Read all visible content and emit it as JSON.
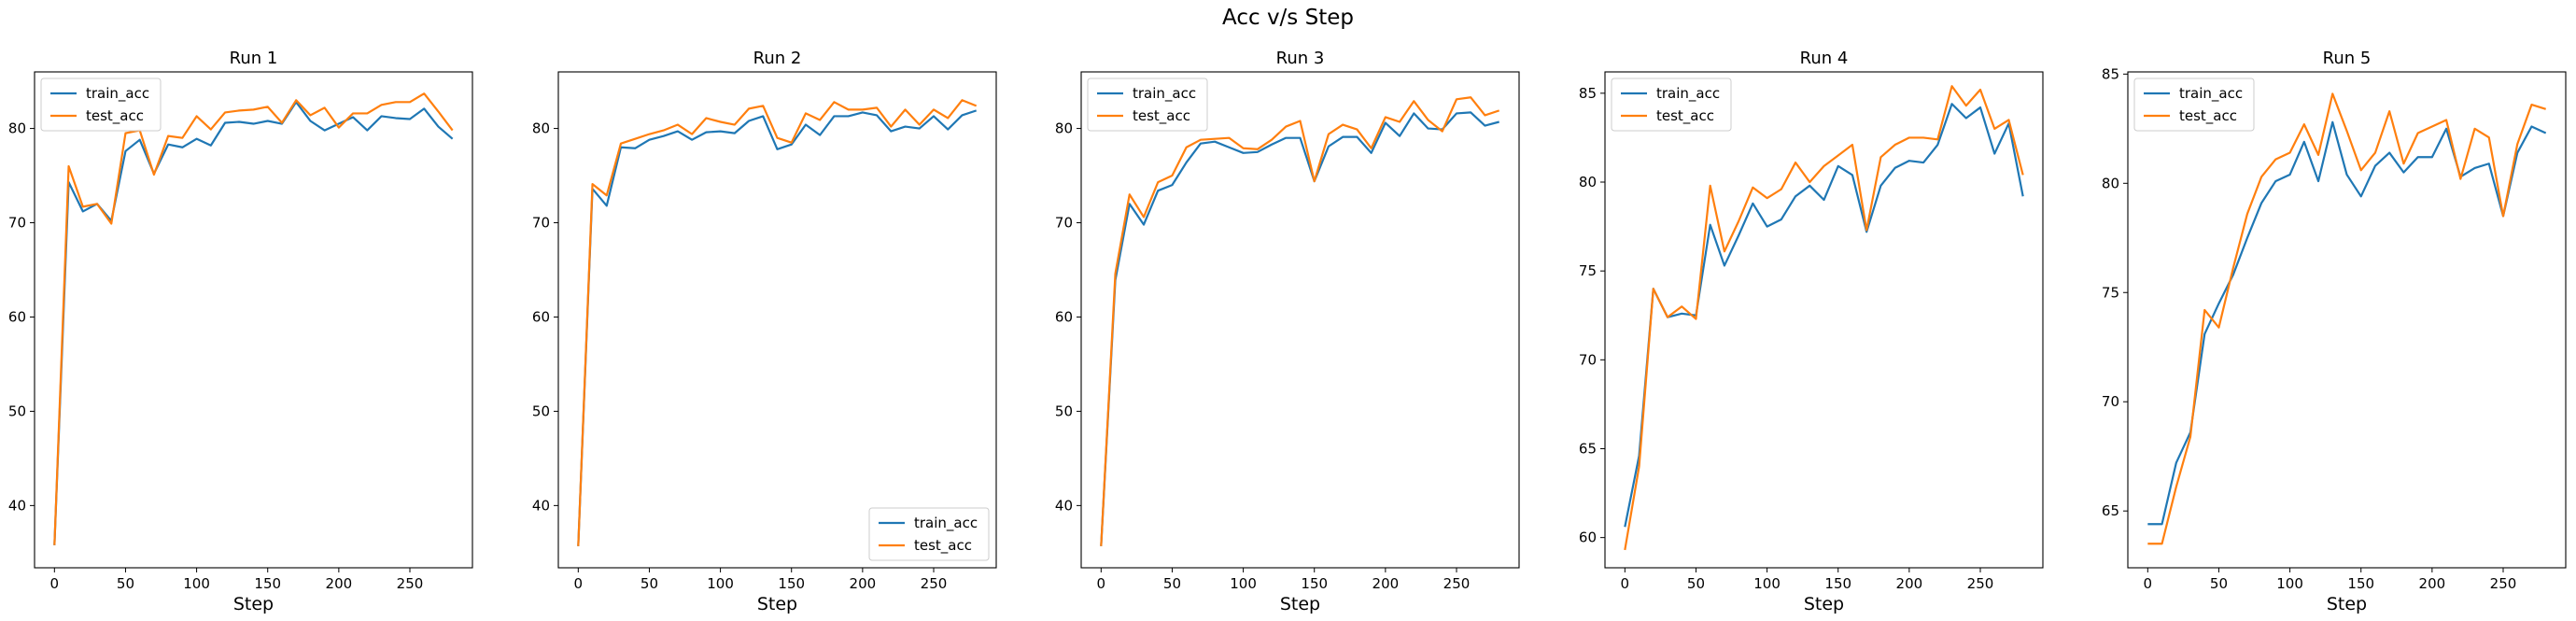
{
  "suptitle": "Acc v/s Step",
  "colors": {
    "train_acc": "#1f77b4",
    "test_acc": "#ff7f0e"
  },
  "chart_data": [
    {
      "type": "line",
      "title": "Run 1",
      "xlabel": "Step",
      "ylabel": "",
      "legend": "top-left",
      "xlim": [
        -14,
        294
      ],
      "ylim": [
        33.4,
        86.0
      ],
      "xticks": [
        0,
        50,
        100,
        150,
        200,
        250
      ],
      "yticks": [
        40,
        50,
        60,
        70,
        80
      ],
      "x": [
        0,
        10,
        20,
        30,
        40,
        50,
        60,
        70,
        80,
        90,
        100,
        110,
        120,
        130,
        140,
        150,
        160,
        170,
        180,
        190,
        200,
        210,
        220,
        230,
        240,
        250,
        260,
        270,
        280
      ],
      "series": [
        {
          "name": "train_acc",
          "values": [
            35.8,
            74.3,
            71.2,
            72.0,
            70.2,
            77.6,
            78.8,
            75.2,
            78.3,
            78.0,
            78.9,
            78.2,
            80.6,
            80.7,
            80.5,
            80.8,
            80.5,
            82.8,
            80.8,
            79.8,
            80.5,
            81.2,
            79.8,
            81.3,
            81.1,
            81.0,
            82.1,
            80.2,
            78.9
          ]
        },
        {
          "name": "test_acc",
          "values": [
            35.8,
            76.0,
            71.7,
            72.0,
            69.9,
            79.5,
            79.8,
            75.1,
            79.2,
            79.0,
            81.3,
            79.9,
            81.7,
            81.9,
            82.0,
            82.3,
            80.6,
            83.0,
            81.4,
            82.2,
            80.1,
            81.6,
            81.6,
            82.5,
            82.8,
            82.8,
            83.7,
            81.8,
            79.8
          ]
        }
      ]
    },
    {
      "type": "line",
      "title": "Run 2",
      "xlabel": "Step",
      "ylabel": "",
      "legend": "bottom-right",
      "xlim": [
        -14,
        294
      ],
      "ylim": [
        33.4,
        86.0
      ],
      "xticks": [
        0,
        50,
        100,
        150,
        200,
        250
      ],
      "yticks": [
        40,
        50,
        60,
        70,
        80
      ],
      "x": [
        0,
        10,
        20,
        30,
        40,
        50,
        60,
        70,
        80,
        90,
        100,
        110,
        120,
        130,
        140,
        150,
        160,
        170,
        180,
        190,
        200,
        210,
        220,
        230,
        240,
        250,
        260,
        270,
        280
      ],
      "series": [
        {
          "name": "train_acc",
          "values": [
            35.7,
            73.6,
            71.8,
            78.0,
            77.9,
            78.8,
            79.2,
            79.7,
            78.8,
            79.6,
            79.7,
            79.5,
            80.8,
            81.3,
            77.8,
            78.3,
            80.4,
            79.3,
            81.3,
            81.3,
            81.7,
            81.4,
            79.7,
            80.2,
            80.0,
            81.3,
            79.9,
            81.4,
            81.9
          ]
        },
        {
          "name": "test_acc",
          "values": [
            35.7,
            74.1,
            72.9,
            78.4,
            78.9,
            79.4,
            79.8,
            80.4,
            79.4,
            81.1,
            80.7,
            80.4,
            82.1,
            82.4,
            79.0,
            78.5,
            81.6,
            80.9,
            82.8,
            82.0,
            82.0,
            82.2,
            80.2,
            82.0,
            80.4,
            82.0,
            81.1,
            83.0,
            82.4
          ]
        }
      ]
    },
    {
      "type": "line",
      "title": "Run 3",
      "xlabel": "Step",
      "ylabel": "",
      "legend": "top-left",
      "xlim": [
        -14,
        294
      ],
      "ylim": [
        33.4,
        86.0
      ],
      "xticks": [
        0,
        50,
        100,
        150,
        200,
        250
      ],
      "yticks": [
        40,
        50,
        60,
        70,
        80
      ],
      "x": [
        0,
        10,
        20,
        30,
        40,
        50,
        60,
        70,
        80,
        90,
        100,
        110,
        120,
        130,
        140,
        150,
        160,
        170,
        180,
        190,
        200,
        210,
        220,
        230,
        240,
        250,
        260,
        270,
        280
      ],
      "series": [
        {
          "name": "train_acc",
          "values": [
            35.7,
            63.9,
            72.0,
            69.8,
            73.4,
            74.0,
            76.4,
            78.4,
            78.6,
            78.0,
            77.4,
            77.5,
            78.3,
            79.0,
            79.0,
            74.4,
            78.1,
            79.1,
            79.1,
            77.4,
            80.6,
            79.2,
            81.6,
            80.0,
            79.9,
            81.6,
            81.7,
            80.3,
            80.7
          ]
        },
        {
          "name": "test_acc",
          "values": [
            35.7,
            64.6,
            73.0,
            70.6,
            74.3,
            75.0,
            78.0,
            78.8,
            78.9,
            79.0,
            77.9,
            77.8,
            78.8,
            80.2,
            80.8,
            74.4,
            79.4,
            80.4,
            79.9,
            77.9,
            81.2,
            80.7,
            82.9,
            80.9,
            79.7,
            83.1,
            83.3,
            81.4,
            81.9
          ]
        }
      ]
    },
    {
      "type": "line",
      "title": "Run 4",
      "xlabel": "Step",
      "ylabel": "",
      "legend": "top-left",
      "xlim": [
        -14,
        294
      ],
      "ylim": [
        58.3,
        86.2
      ],
      "xticks": [
        0,
        50,
        100,
        150,
        200,
        250
      ],
      "yticks": [
        60,
        65,
        70,
        75,
        80,
        85
      ],
      "x": [
        0,
        10,
        20,
        30,
        40,
        50,
        60,
        70,
        80,
        90,
        100,
        110,
        120,
        130,
        140,
        150,
        160,
        170,
        180,
        190,
        200,
        210,
        220,
        230,
        240,
        250,
        260,
        270,
        280
      ],
      "series": [
        {
          "name": "train_acc",
          "values": [
            60.6,
            64.6,
            74.0,
            72.4,
            72.6,
            72.5,
            77.6,
            75.3,
            77.0,
            78.8,
            77.5,
            77.9,
            79.2,
            79.8,
            79.0,
            80.9,
            80.4,
            77.2,
            79.8,
            80.8,
            81.2,
            81.1,
            82.1,
            84.4,
            83.6,
            84.2,
            81.6,
            83.3,
            79.2
          ]
        },
        {
          "name": "test_acc",
          "values": [
            59.3,
            64.0,
            74.0,
            72.4,
            73.0,
            72.3,
            79.8,
            76.1,
            77.8,
            79.7,
            79.1,
            79.6,
            81.1,
            80.0,
            80.9,
            81.5,
            82.1,
            77.3,
            81.4,
            82.1,
            82.5,
            82.5,
            82.4,
            85.4,
            84.3,
            85.2,
            83.0,
            83.5,
            80.4
          ]
        }
      ]
    },
    {
      "type": "line",
      "title": "Run 5",
      "xlabel": "Step",
      "ylabel": "",
      "legend": "top-left",
      "xlim": [
        -14,
        294
      ],
      "ylim": [
        62.4,
        85.1
      ],
      "xticks": [
        0,
        50,
        100,
        150,
        200,
        250
      ],
      "yticks": [
        65,
        70,
        75,
        80,
        85
      ],
      "x": [
        0,
        10,
        20,
        30,
        40,
        50,
        60,
        70,
        80,
        90,
        100,
        110,
        120,
        130,
        140,
        150,
        160,
        170,
        180,
        190,
        200,
        210,
        220,
        230,
        240,
        250,
        260,
        270,
        280
      ],
      "series": [
        {
          "name": "train_acc",
          "values": [
            64.4,
            64.4,
            67.2,
            68.6,
            73.1,
            74.5,
            75.8,
            77.5,
            79.1,
            80.1,
            80.4,
            81.9,
            80.1,
            82.8,
            80.4,
            79.4,
            80.8,
            81.4,
            80.5,
            81.2,
            81.2,
            82.5,
            80.3,
            80.7,
            80.9,
            78.5,
            81.4,
            82.6,
            82.3
          ]
        },
        {
          "name": "test_acc",
          "values": [
            63.5,
            63.5,
            66.1,
            68.4,
            74.2,
            73.4,
            76.1,
            78.6,
            80.3,
            81.1,
            81.4,
            82.7,
            81.3,
            84.1,
            82.4,
            80.6,
            81.4,
            83.3,
            80.9,
            82.3,
            82.6,
            82.9,
            80.2,
            82.5,
            82.1,
            78.5,
            81.8,
            83.6,
            83.4
          ]
        }
      ]
    }
  ]
}
